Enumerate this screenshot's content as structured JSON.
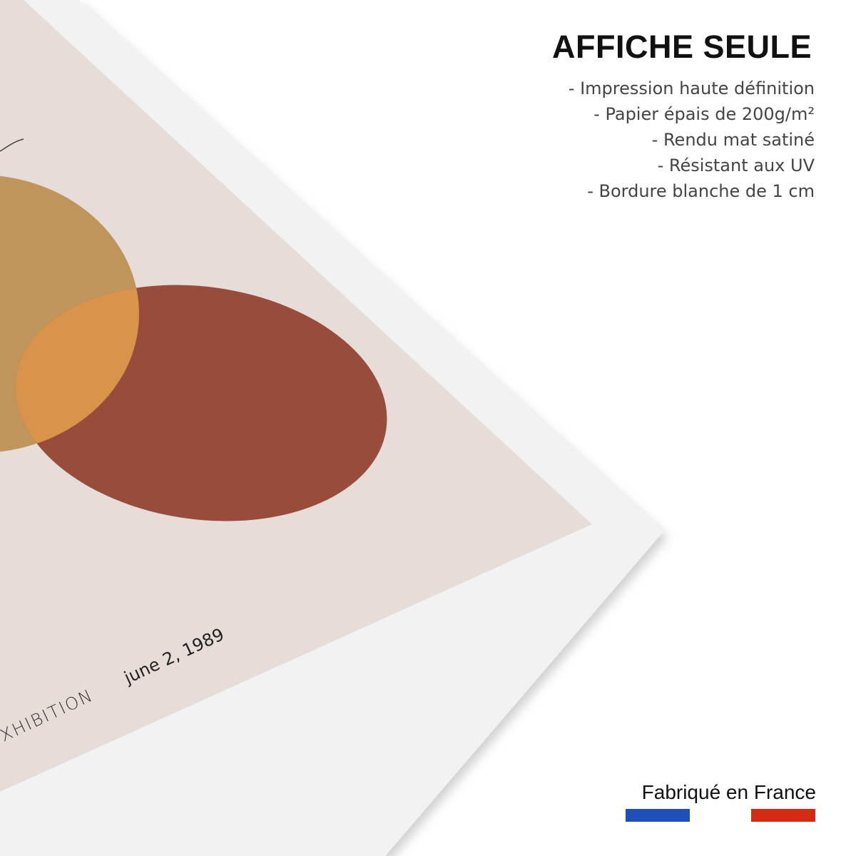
{
  "poster": {
    "caption_left": "XHIBITION",
    "caption_date": "june 2, 1989",
    "colors": {
      "paper": "#F2F2F2",
      "background": "#E6DDD8",
      "gold_circle": "#BF955C",
      "red_circle": "#984C3C",
      "overlap": "#D9934A"
    }
  },
  "info": {
    "title": "AFFICHE SEULE",
    "features": [
      "- Impression haute définition",
      "- Papier épais de 200g/m²",
      "- Rendu mat satiné",
      "- Résistant aux UV",
      "- Bordure blanche de 1 cm"
    ]
  },
  "footer": {
    "made_in": "Fabriqué en France",
    "flag_colors": {
      "blue": "#1F4FB8",
      "red": "#D42A12"
    }
  }
}
